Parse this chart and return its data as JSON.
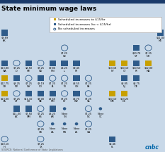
{
  "title": "State minimum wage laws",
  "background": "#c8d8e8",
  "legend": {
    "gold": "Scheduled increases to $15/hr",
    "blue": "Scheduled increases (to < $15/hr)",
    "circle": "No scheduled increases"
  },
  "states": [
    {
      "label": "$9.89\nAK",
      "col": 0,
      "row": 0,
      "type": "blue"
    },
    {
      "label": "$11.00\nME",
      "col": 13,
      "row": 0,
      "type": "blue"
    },
    {
      "label": "$7.25\nWI",
      "col": 5,
      "row": 1,
      "type": "circle"
    },
    {
      "label": "$10.78\nVT",
      "col": 11,
      "row": 1,
      "type": "blue"
    },
    {
      "label": "$7.25\nNH",
      "col": 12,
      "row": 1,
      "type": "circle"
    },
    {
      "label": "$13.80\nWA",
      "col": 0,
      "row": 2,
      "type": "blue"
    },
    {
      "label": "$7.25\nID",
      "col": 1,
      "row": 2,
      "type": "circle"
    },
    {
      "label": "$8.50\nMT",
      "col": 2,
      "row": 2,
      "type": "blue"
    },
    {
      "label": "$7.25\nND",
      "col": 3,
      "row": 2,
      "type": "circle"
    },
    {
      "label": "$9.86\nMN",
      "col": 4,
      "row": 2,
      "type": "blue"
    },
    {
      "label": "$8.25\nIL",
      "col": 5,
      "row": 2,
      "type": "blue"
    },
    {
      "label": "$9.45\nMI",
      "col": 6,
      "row": 2,
      "type": "blue"
    },
    {
      "label": "$13.18\nNY",
      "col": 9,
      "row": 2,
      "type": "gold"
    },
    {
      "label": "$10.10\nCT",
      "col": 10,
      "row": 2,
      "type": "gold"
    },
    {
      "label": "$10.50\nRI",
      "col": 11,
      "row": 2,
      "type": "blue"
    },
    {
      "label": "$12.00\nMA",
      "col": 12,
      "row": 2,
      "type": "gold"
    },
    {
      "label": "$12.75\nOR",
      "col": 0,
      "row": 3,
      "type": "gold"
    },
    {
      "label": "$8.25\nNV",
      "col": 1,
      "row": 3,
      "type": "blue"
    },
    {
      "label": "$7.25\nWY",
      "col": 2,
      "row": 3,
      "type": "circle"
    },
    {
      "label": "$9.19\nSD",
      "col": 3,
      "row": 3,
      "type": "blue"
    },
    {
      "label": "$7.25\nIA",
      "col": 4,
      "row": 3,
      "type": "circle"
    },
    {
      "label": "$7.25\nIN",
      "col": 5,
      "row": 3,
      "type": "circle"
    },
    {
      "label": "$8.55\nOH",
      "col": 6,
      "row": 3,
      "type": "blue"
    },
    {
      "label": "$7.25\nPA",
      "col": 7,
      "row": 3,
      "type": "circle"
    },
    {
      "label": "$8.85\nNJ",
      "col": 10,
      "row": 3,
      "type": "blue"
    },
    {
      "label": "$8.75\nDE",
      "col": 11,
      "row": 3,
      "type": "blue"
    },
    {
      "label": "$13.00\nCA",
      "col": 0,
      "row": 4,
      "type": "gold"
    },
    {
      "label": "$7.25\nUT",
      "col": 1,
      "row": 4,
      "type": "circle"
    },
    {
      "label": "$11.10\nCO",
      "col": 2,
      "row": 4,
      "type": "blue"
    },
    {
      "label": "$9.00\nNE",
      "col": 3,
      "row": 4,
      "type": "blue"
    },
    {
      "label": "$8.60\nMO",
      "col": 4,
      "row": 4,
      "type": "blue"
    },
    {
      "label": "$7.25\nKY",
      "col": 5,
      "row": 4,
      "type": "circle"
    },
    {
      "label": "$8.75\nWV",
      "col": 6,
      "row": 4,
      "type": "blue"
    },
    {
      "label": "$7.25\nVA",
      "col": 7,
      "row": 4,
      "type": "circle"
    },
    {
      "label": "$10.10\nMD",
      "col": 9,
      "row": 4,
      "type": "gold"
    },
    {
      "label": "$13.25\nDC",
      "col": 10,
      "row": 4,
      "type": "gold"
    },
    {
      "label": "$11.00\nAZ",
      "col": 1,
      "row": 5,
      "type": "blue"
    },
    {
      "label": "$7.50\nNM",
      "col": 2,
      "row": 5,
      "type": "blue"
    },
    {
      "label": "$7.25\nKS",
      "col": 3,
      "row": 5,
      "type": "circle"
    },
    {
      "label": "$8.25\nAR",
      "col": 4,
      "row": 5,
      "type": "blue"
    },
    {
      "label": "None\nTN",
      "col": 5,
      "row": 5,
      "type": "dot"
    },
    {
      "label": "$7.25\nNC",
      "col": 7,
      "row": 5,
      "type": "circle"
    },
    {
      "label": "None\nSC",
      "col": 8,
      "row": 5,
      "type": "dot"
    },
    {
      "label": "$7.25\nOK",
      "col": 3,
      "row": 6,
      "type": "circle"
    },
    {
      "label": "None\nLA",
      "col": 4,
      "row": 6,
      "type": "dot"
    },
    {
      "label": "None\nMS",
      "col": 5,
      "row": 6,
      "type": "dot"
    },
    {
      "label": "None\nAL",
      "col": 6,
      "row": 6,
      "type": "dot"
    },
    {
      "label": "$7.25\nGA",
      "col": 7,
      "row": 6,
      "type": "circle"
    },
    {
      "label": "$10.10\nHI",
      "col": 0,
      "row": 7,
      "type": "circle"
    },
    {
      "label": "$7.25\nTX",
      "col": 3,
      "row": 7,
      "type": "circle"
    },
    {
      "label": "$8.46\nFL",
      "col": 9,
      "row": 7,
      "type": "blue"
    }
  ],
  "gold_color": "#c8a000",
  "blue_color": "#2e5b8a",
  "text_color": "#111111",
  "source_text": "SOURCE: National Conference of State Legislatures",
  "cnbc_color": "#0066aa",
  "top_bar_color": "#1a3a6a",
  "num_cols": 14,
  "num_rows": 8
}
